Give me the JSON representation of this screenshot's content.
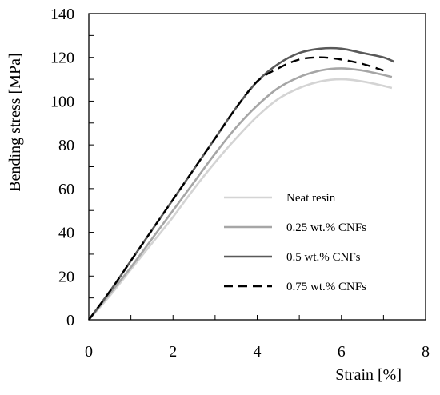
{
  "chart_data": {
    "type": "line",
    "title": "",
    "xlabel": "Strain [%]",
    "ylabel": "Bending stress [MPa]",
    "xlim": [
      0,
      8
    ],
    "ylim": [
      0,
      140
    ],
    "xticks": [
      0,
      2,
      4,
      6,
      8
    ],
    "yticks": [
      0,
      20,
      40,
      60,
      80,
      100,
      120,
      140
    ],
    "grid": false,
    "legend_position": "bottom-right",
    "series": [
      {
        "name": "Neat resin",
        "color": "#d4d4d4",
        "style": "solid",
        "x": [
          0,
          0.5,
          1,
          1.5,
          2,
          2.5,
          3,
          3.5,
          4,
          4.5,
          5,
          5.5,
          6,
          6.5,
          7,
          7.2
        ],
        "y": [
          0,
          11,
          23,
          35,
          47,
          60,
          72,
          83,
          93,
          101,
          106,
          109,
          110,
          109,
          107,
          106
        ]
      },
      {
        "name": "0.25 wt.% CNFs",
        "color": "#a6a6a6",
        "style": "solid",
        "x": [
          0,
          0.5,
          1,
          1.5,
          2,
          2.5,
          3,
          3.5,
          4,
          4.5,
          5,
          5.5,
          6,
          6.5,
          7,
          7.2
        ],
        "y": [
          0,
          12,
          24,
          37,
          50,
          63,
          76,
          88,
          98,
          106,
          111,
          114,
          115,
          114,
          112,
          111
        ]
      },
      {
        "name": "0.5 wt.% CNFs",
        "color": "#595959",
        "style": "solid",
        "x": [
          0,
          0.5,
          1,
          1.5,
          2,
          2.5,
          3,
          3.5,
          4,
          4.5,
          5,
          5.5,
          6,
          6.5,
          7,
          7.25
        ],
        "y": [
          0,
          13,
          27,
          41,
          55,
          69,
          83,
          97,
          109,
          117,
          122,
          124,
          124,
          122,
          120,
          118
        ]
      },
      {
        "name": "0.75 wt.% CNFs",
        "color": "#000000",
        "style": "dashed",
        "x": [
          0,
          0.5,
          1,
          1.5,
          2,
          2.5,
          3,
          3.5,
          4,
          4.5,
          5,
          5.5,
          6,
          6.5,
          7
        ],
        "y": [
          0,
          13,
          27,
          41,
          55,
          69,
          83,
          97,
          109,
          115,
          119,
          120,
          119,
          117,
          114
        ]
      }
    ]
  }
}
